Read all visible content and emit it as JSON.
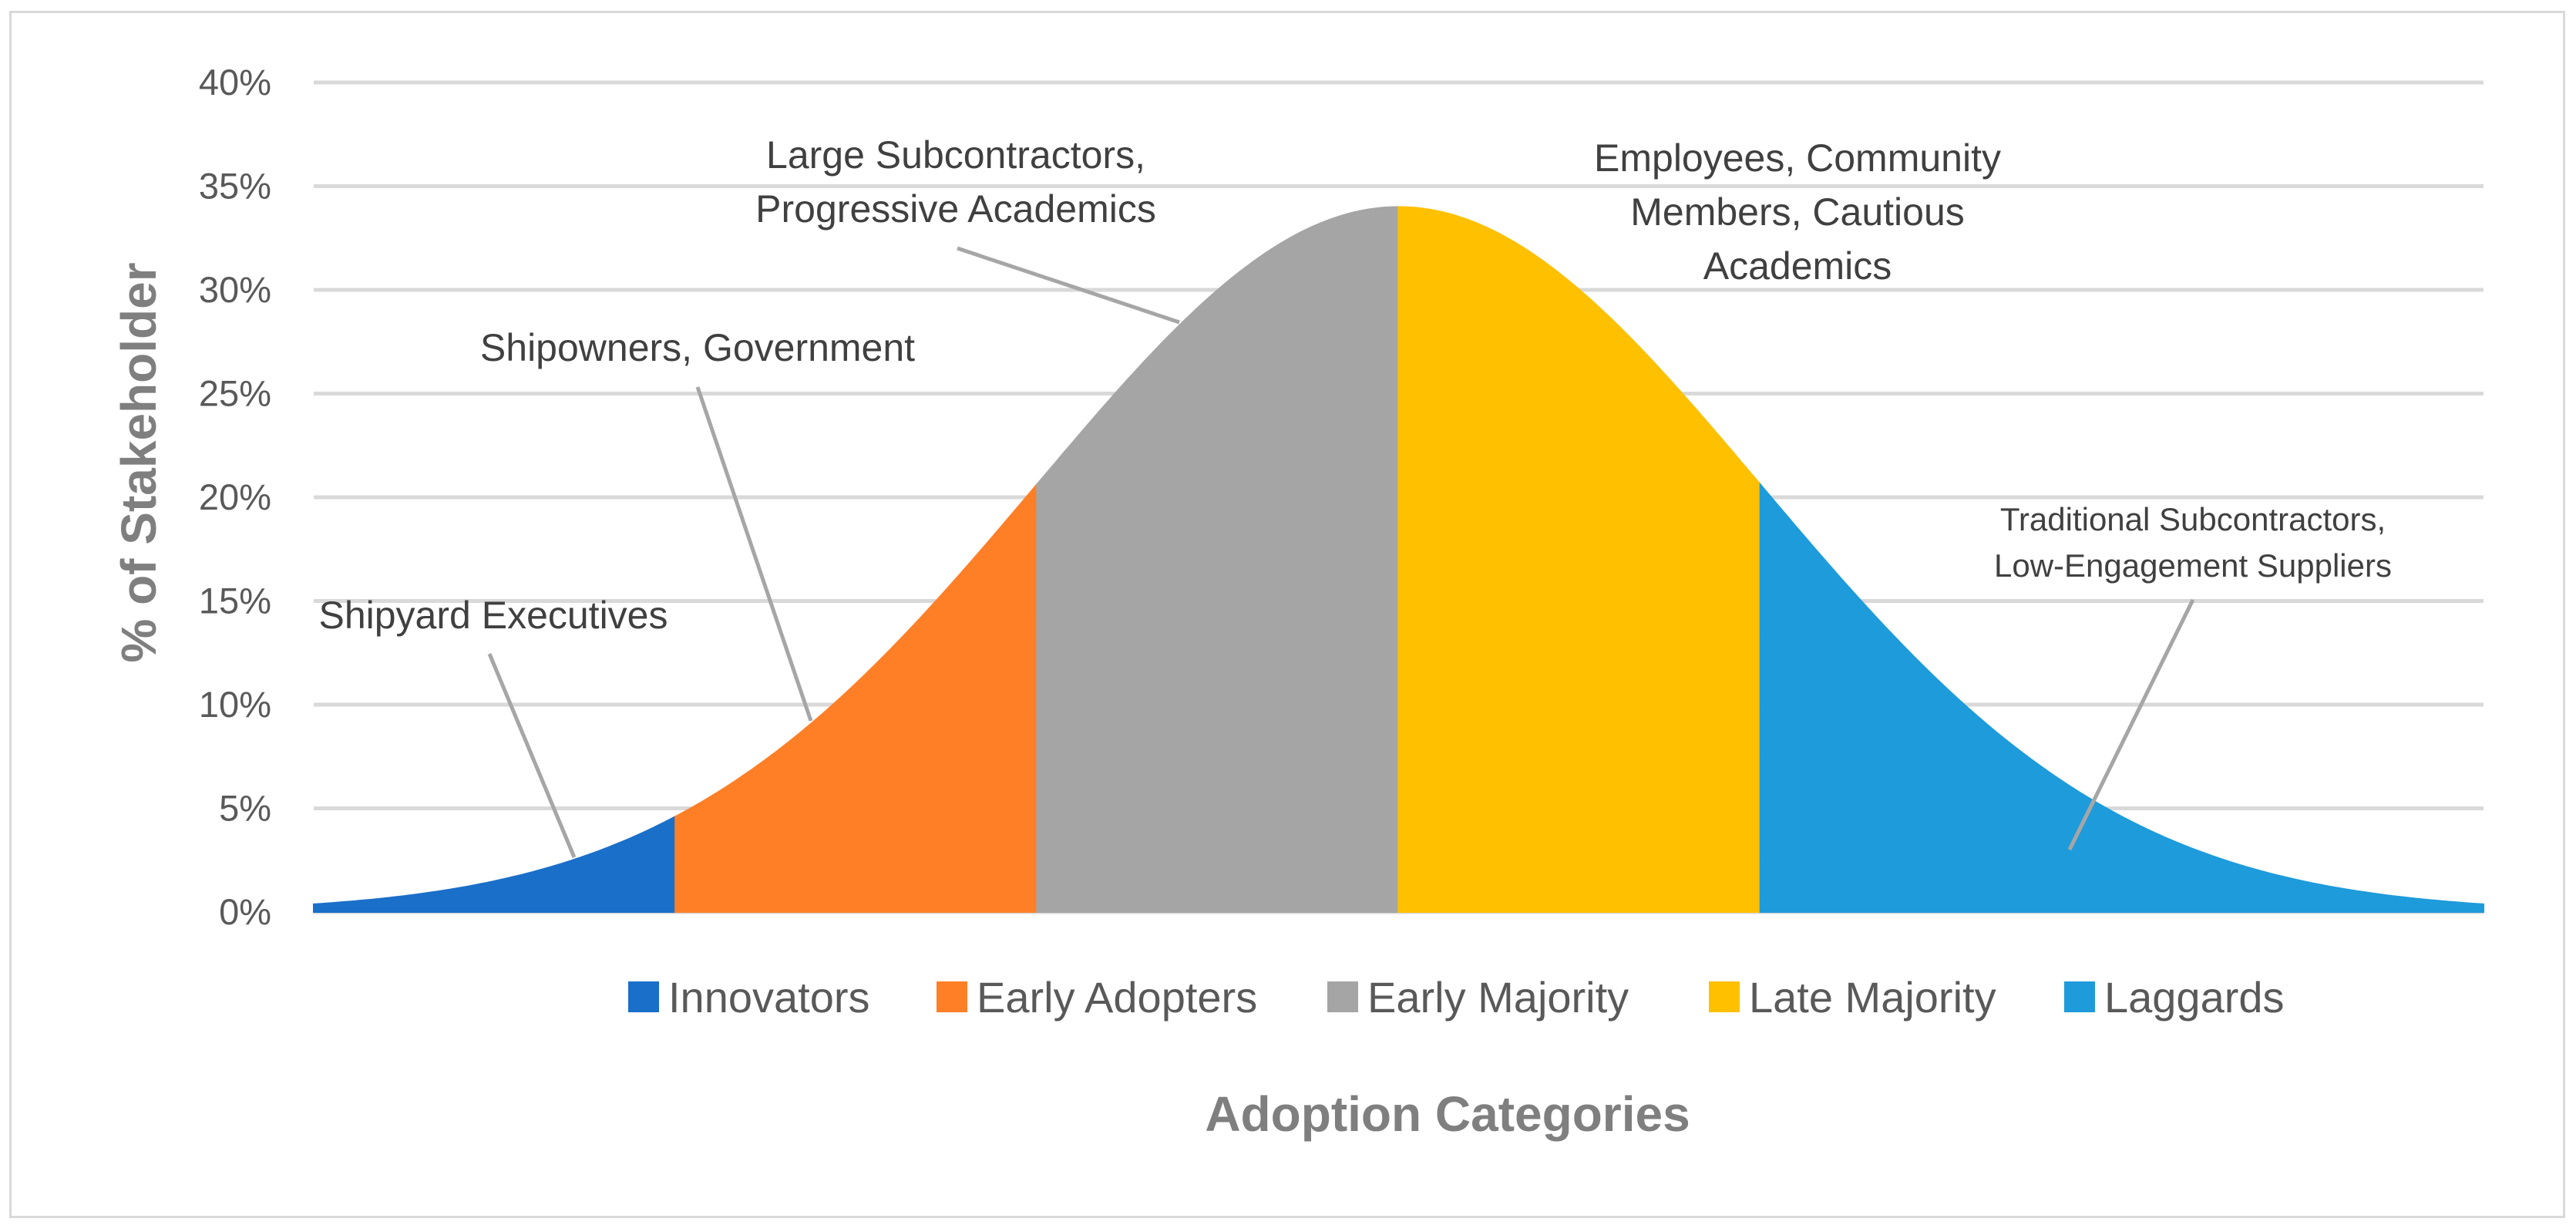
{
  "chart_data": {
    "type": "area",
    "title": "",
    "xlabel": "Adoption Categories",
    "ylabel": "% of Stakeholder",
    "ylim": [
      0,
      0.4
    ],
    "yticks": [
      "0%",
      "5%",
      "10%",
      "15%",
      "20%",
      "25%",
      "30%",
      "35%",
      "40%"
    ],
    "grid": true,
    "legend_position": "bottom",
    "curve": "normal distribution (bell curve), peak about 34%",
    "series": [
      {
        "name": "Innovators",
        "color": "#1a6fc9",
        "x_range": [
          -3.0,
          -2.0
        ],
        "y_start": 0.003,
        "y_end": 0.041
      },
      {
        "name": "Early Adopters",
        "color": "#ff7f27",
        "x_range": [
          -2.0,
          -1.0
        ],
        "y_start": 0.041,
        "y_end": 0.2
      },
      {
        "name": "Early Majority",
        "color": "#a5a5a5",
        "x_range": [
          -1.0,
          0.0
        ],
        "y_start": 0.2,
        "y_end": 0.34
      },
      {
        "name": "Late Majority",
        "color": "#ffc000",
        "x_range": [
          0.0,
          1.0
        ],
        "y_start": 0.34,
        "y_end": 0.215
      },
      {
        "name": "Laggards",
        "color": "#1e9bdb",
        "x_range": [
          1.0,
          3.0
        ],
        "y_start": 0.215,
        "y_end": 0.003
      }
    ],
    "annotations": [
      {
        "lines": [
          "Shipyard Executives"
        ],
        "category": "Innovators"
      },
      {
        "lines": [
          "Shipowners, Government"
        ],
        "category": "Early Adopters"
      },
      {
        "lines": [
          "Large Subcontractors,",
          "Progressive Academics"
        ],
        "category": "Early Majority"
      },
      {
        "lines": [
          "Employees, Community",
          "Members, Cautious",
          "Academics"
        ],
        "category": "Late Majority"
      },
      {
        "lines": [
          "Traditional Subcontractors,",
          "Low-Engagement Suppliers"
        ],
        "category": "Laggards"
      }
    ]
  }
}
